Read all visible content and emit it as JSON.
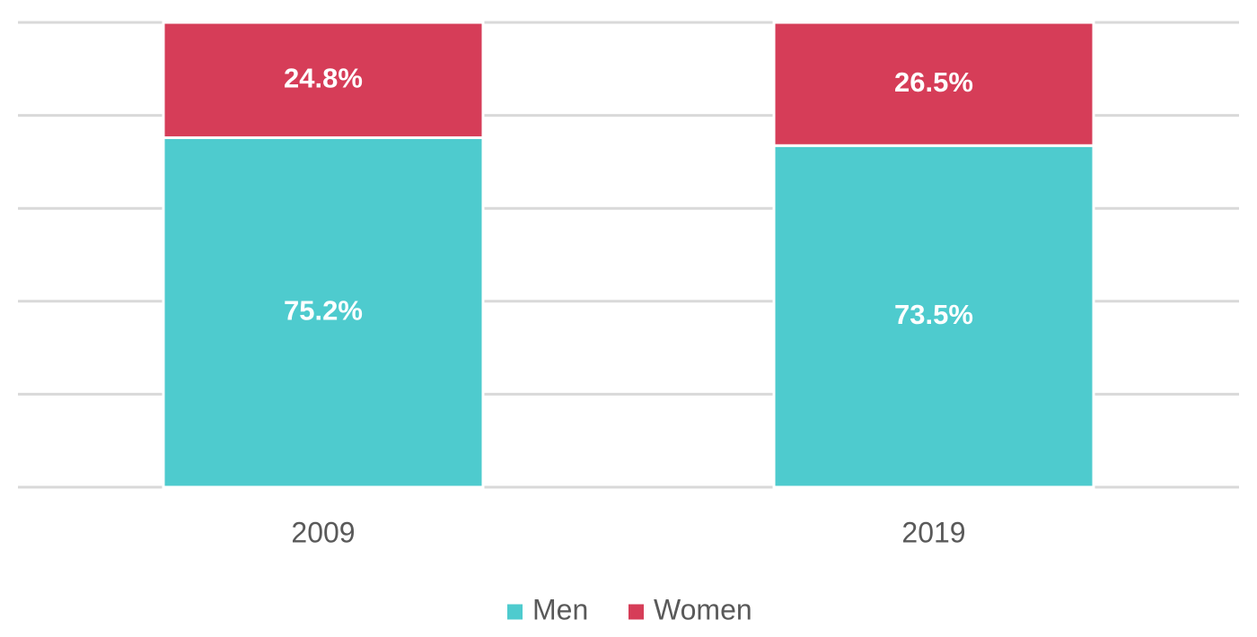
{
  "chart_data": {
    "type": "bar",
    "stacked": true,
    "categories": [
      "2009",
      "2019"
    ],
    "series": [
      {
        "name": "Men",
        "values": [
          75.2,
          73.5
        ],
        "labels": [
          "75.2%",
          "73.5%"
        ],
        "color": "#4ecbce"
      },
      {
        "name": "Women",
        "values": [
          24.8,
          26.5
        ],
        "labels": [
          "24.8%",
          "26.5%"
        ],
        "color": "#d63d58"
      }
    ],
    "ylim": [
      0,
      100
    ],
    "grid": true,
    "legend_position": "bottom"
  }
}
